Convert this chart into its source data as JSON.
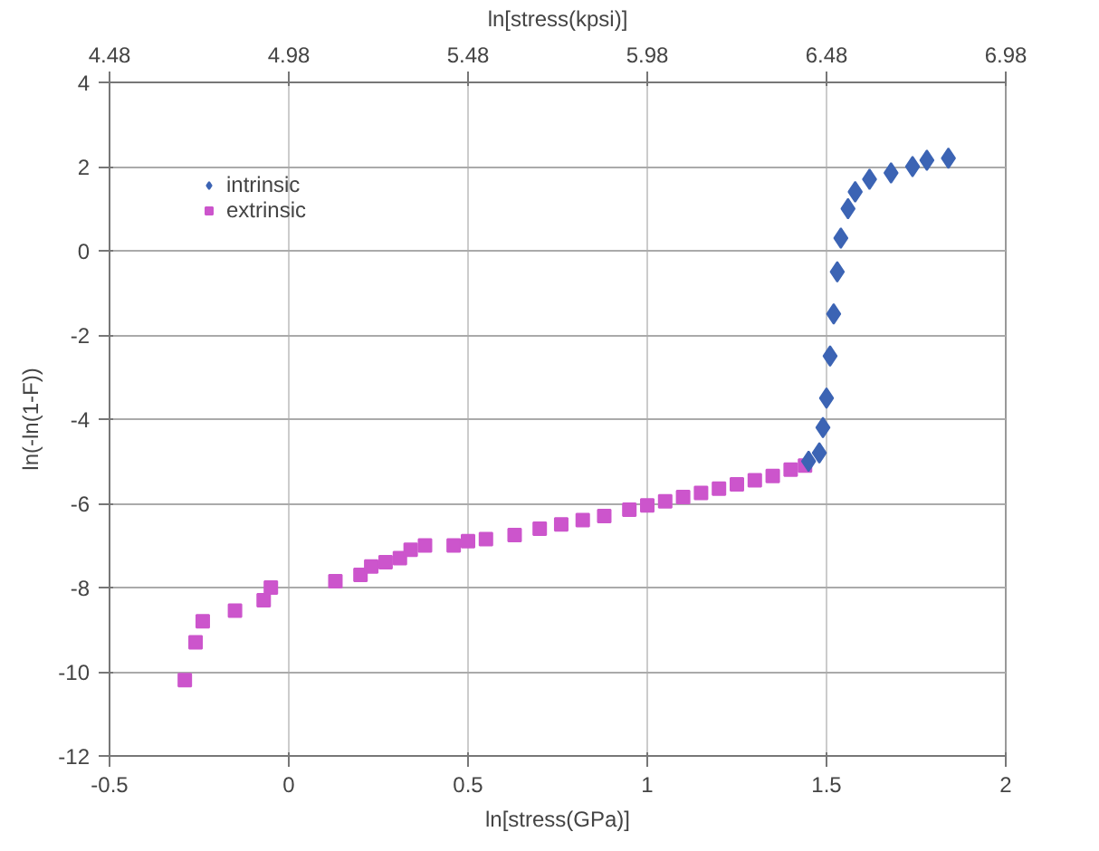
{
  "chart_data": {
    "type": "scatter",
    "xlabel": "ln[stress(GPa)]",
    "ylabel": "ln(-ln(1-F))",
    "x2label": "ln[stress(kpsi)]",
    "xlim": [
      -0.5,
      2
    ],
    "xticks": [
      -0.5,
      0,
      0.5,
      1,
      1.5,
      2
    ],
    "ylim": [
      -12,
      4
    ],
    "yticks": [
      -12,
      -10,
      -8,
      -6,
      -4,
      -2,
      0,
      2,
      4
    ],
    "x2lim": [
      4.48,
      6.98
    ],
    "x2ticks": [
      4.48,
      4.98,
      5.48,
      5.98,
      6.48,
      6.98
    ],
    "grid": true,
    "legend": "top left",
    "series": [
      {
        "name": "intrinsic",
        "color": "#3c64b4",
        "marker": "diamond",
        "x": [
          1.45,
          1.48,
          1.49,
          1.5,
          1.51,
          1.52,
          1.53,
          1.54,
          1.56,
          1.58,
          1.62,
          1.68,
          1.74,
          1.78,
          1.84
        ],
        "values": [
          -5.0,
          -4.8,
          -4.2,
          -3.5,
          -2.5,
          -1.5,
          -0.5,
          0.3,
          1.0,
          1.4,
          1.7,
          1.85,
          2.0,
          2.15,
          2.2
        ]
      },
      {
        "name": "extrinsic",
        "color": "#cc55cc",
        "marker": "square",
        "x": [
          -0.29,
          -0.26,
          -0.24,
          -0.15,
          -0.07,
          -0.05,
          0.13,
          0.2,
          0.23,
          0.27,
          0.31,
          0.34,
          0.38,
          0.46,
          0.5,
          0.55,
          0.63,
          0.7,
          0.76,
          0.82,
          0.88,
          0.95,
          1.0,
          1.05,
          1.1,
          1.15,
          1.2,
          1.25,
          1.3,
          1.35,
          1.4,
          1.44
        ],
        "values": [
          -10.2,
          -9.3,
          -8.8,
          -8.55,
          -8.3,
          -8.0,
          -7.85,
          -7.7,
          -7.5,
          -7.4,
          -7.3,
          -7.1,
          -7.0,
          -7.0,
          -6.9,
          -6.85,
          -6.75,
          -6.6,
          -6.5,
          -6.4,
          -6.3,
          -6.15,
          -6.05,
          -5.95,
          -5.85,
          -5.75,
          -5.65,
          -5.55,
          -5.45,
          -5.35,
          -5.2,
          -5.1
        ]
      }
    ]
  }
}
